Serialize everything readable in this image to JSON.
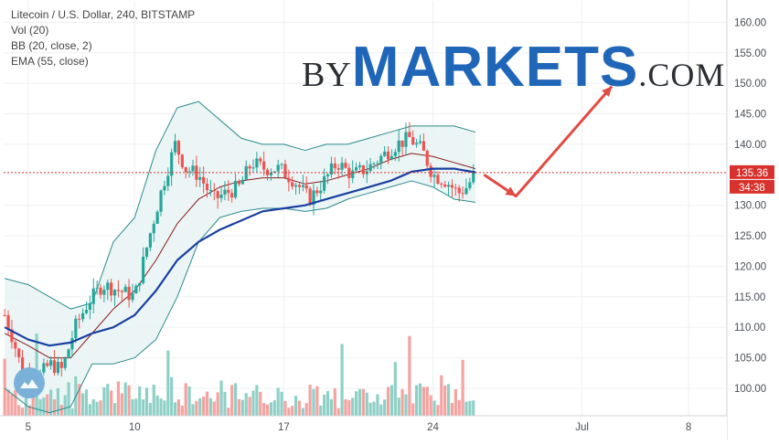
{
  "legend": {
    "line1": "Litecoin / U.S. Dollar, 240, BITSTAMP",
    "line2": "Vol (20)",
    "line3": "BB (20, close, 2)",
    "line4": "EMA (55, close)"
  },
  "watermark": {
    "by": "BY",
    "markets": "MARKETS",
    "com": ".COM"
  },
  "price_label": {
    "value": "135.36",
    "countdown": "34:38"
  },
  "colors": {
    "up": "#26a69a",
    "down": "#ef5350",
    "vol_up": "#8fd0c6",
    "vol_down": "#f4a3a1",
    "bb_band": "#2d8a8a",
    "bb_fill": "#e8f3f5",
    "bb_mid": "#8b1a1a",
    "ema": "#1a3fa0",
    "arrow": "#e04b43",
    "price_line": "#d9322e"
  },
  "icons": {
    "logo": "tradingview-cloud-icon"
  },
  "chart_data": {
    "type": "candlestick",
    "title": "Litecoin / U.S. Dollar, 240, BITSTAMP",
    "ylim": [
      95.5,
      163.5
    ],
    "y_ticks": [
      100,
      105,
      110,
      115,
      120,
      125,
      130,
      135,
      140,
      145,
      150,
      155,
      160
    ],
    "y_tick_labels": [
      "100.00",
      "105.00",
      "110.00",
      "115.00",
      "120.00",
      "125.00",
      "130.00",
      "135.00",
      "140.00",
      "145.00",
      "150.00",
      "155.00",
      "160.00"
    ],
    "x_ticks": [
      {
        "day": 5,
        "label": "5"
      },
      {
        "day": 10,
        "label": "10"
      },
      {
        "day": 17,
        "label": "17"
      },
      {
        "day": 24,
        "label": "24"
      },
      {
        "day": 31,
        "label": "Jul"
      },
      {
        "day": 36,
        "label": "8"
      }
    ],
    "x_range_days": [
      3.85,
      37.8
    ],
    "bars_per_day": 6,
    "indicators": [
      "Vol (20)",
      "BB (20, close, 2)",
      "EMA (55, close)"
    ],
    "last_price": 135.36,
    "anchors": [
      {
        "day": 3.9,
        "close": 112
      },
      {
        "day": 4.3,
        "close": 108
      },
      {
        "day": 4.7,
        "close": 103
      },
      {
        "day": 5.3,
        "close": 101
      },
      {
        "day": 6.0,
        "close": 104
      },
      {
        "day": 6.6,
        "close": 103
      },
      {
        "day": 7.2,
        "close": 110
      },
      {
        "day": 7.8,
        "close": 114
      },
      {
        "day": 8.5,
        "close": 117
      },
      {
        "day": 9.3,
        "close": 116
      },
      {
        "day": 10.0,
        "close": 115
      },
      {
        "day": 10.7,
        "close": 125
      },
      {
        "day": 11.3,
        "close": 133
      },
      {
        "day": 11.9,
        "close": 140
      },
      {
        "day": 12.4,
        "close": 136
      },
      {
        "day": 13.0,
        "close": 135
      },
      {
        "day": 13.7,
        "close": 131
      },
      {
        "day": 14.3,
        "close": 132
      },
      {
        "day": 14.9,
        "close": 133
      },
      {
        "day": 15.5,
        "close": 137
      },
      {
        "day": 16.1,
        "close": 136
      },
      {
        "day": 16.8,
        "close": 136
      },
      {
        "day": 17.5,
        "close": 134
      },
      {
        "day": 18.2,
        "close": 131
      },
      {
        "day": 18.9,
        "close": 134
      },
      {
        "day": 19.5,
        "close": 137
      },
      {
        "day": 20.2,
        "close": 135
      },
      {
        "day": 20.9,
        "close": 136
      },
      {
        "day": 21.6,
        "close": 138
      },
      {
        "day": 22.3,
        "close": 140
      },
      {
        "day": 22.9,
        "close": 141
      },
      {
        "day": 23.5,
        "close": 139
      },
      {
        "day": 24.0,
        "close": 135
      },
      {
        "day": 24.6,
        "close": 134
      },
      {
        "day": 25.2,
        "close": 132
      },
      {
        "day": 25.6,
        "close": 133
      },
      {
        "day": 26.0,
        "close": 135.36
      }
    ],
    "ema_path": [
      {
        "day": 3.9,
        "value": 110
      },
      {
        "day": 5.0,
        "value": 108
      },
      {
        "day": 6.0,
        "value": 107
      },
      {
        "day": 7.0,
        "value": 107.5
      },
      {
        "day": 8.0,
        "value": 109
      },
      {
        "day": 9.0,
        "value": 110
      },
      {
        "day": 10.0,
        "value": 112
      },
      {
        "day": 11.0,
        "value": 116
      },
      {
        "day": 12.0,
        "value": 121
      },
      {
        "day": 13.0,
        "value": 124
      },
      {
        "day": 14.0,
        "value": 126
      },
      {
        "day": 15.0,
        "value": 127.5
      },
      {
        "day": 16.0,
        "value": 129
      },
      {
        "day": 17.0,
        "value": 129.5
      },
      {
        "day": 18.0,
        "value": 130
      },
      {
        "day": 19.0,
        "value": 131
      },
      {
        "day": 20.0,
        "value": 132
      },
      {
        "day": 21.0,
        "value": 133
      },
      {
        "day": 22.0,
        "value": 134
      },
      {
        "day": 23.0,
        "value": 135.5
      },
      {
        "day": 24.0,
        "value": 136
      },
      {
        "day": 25.0,
        "value": 136
      },
      {
        "day": 26.0,
        "value": 135.4
      }
    ],
    "bb_upper": [
      {
        "day": 3.9,
        "value": 118
      },
      {
        "day": 5.0,
        "value": 117
      },
      {
        "day": 6.0,
        "value": 115
      },
      {
        "day": 7.0,
        "value": 113
      },
      {
        "day": 8.0,
        "value": 114
      },
      {
        "day": 9.0,
        "value": 124
      },
      {
        "day": 10.0,
        "value": 128
      },
      {
        "day": 11.0,
        "value": 139
      },
      {
        "day": 12.0,
        "value": 146
      },
      {
        "day": 13.0,
        "value": 147
      },
      {
        "day": 14.0,
        "value": 144
      },
      {
        "day": 15.0,
        "value": 141
      },
      {
        "day": 16.0,
        "value": 140
      },
      {
        "day": 17.0,
        "value": 140
      },
      {
        "day": 18.0,
        "value": 139
      },
      {
        "day": 19.0,
        "value": 140
      },
      {
        "day": 20.0,
        "value": 140
      },
      {
        "day": 21.0,
        "value": 141
      },
      {
        "day": 22.0,
        "value": 142
      },
      {
        "day": 23.0,
        "value": 143
      },
      {
        "day": 24.0,
        "value": 143
      },
      {
        "day": 25.0,
        "value": 143
      },
      {
        "day": 26.0,
        "value": 142
      }
    ],
    "bb_mid": [
      {
        "day": 3.9,
        "value": 109
      },
      {
        "day": 5.0,
        "value": 107
      },
      {
        "day": 6.0,
        "value": 105
      },
      {
        "day": 7.0,
        "value": 105
      },
      {
        "day": 8.0,
        "value": 109
      },
      {
        "day": 9.0,
        "value": 113
      },
      {
        "day": 10.0,
        "value": 116
      },
      {
        "day": 11.0,
        "value": 121
      },
      {
        "day": 12.0,
        "value": 127
      },
      {
        "day": 13.0,
        "value": 131
      },
      {
        "day": 14.0,
        "value": 133
      },
      {
        "day": 15.0,
        "value": 134
      },
      {
        "day": 16.0,
        "value": 134.5
      },
      {
        "day": 17.0,
        "value": 134.5
      },
      {
        "day": 18.0,
        "value": 133.5
      },
      {
        "day": 19.0,
        "value": 134
      },
      {
        "day": 20.0,
        "value": 135
      },
      {
        "day": 21.0,
        "value": 136
      },
      {
        "day": 22.0,
        "value": 137.5
      },
      {
        "day": 23.0,
        "value": 138.5
      },
      {
        "day": 24.0,
        "value": 138
      },
      {
        "day": 25.0,
        "value": 137
      },
      {
        "day": 26.0,
        "value": 136
      }
    ],
    "bb_lower": [
      {
        "day": 3.9,
        "value": 100
      },
      {
        "day": 5.0,
        "value": 97
      },
      {
        "day": 6.0,
        "value": 96
      },
      {
        "day": 7.0,
        "value": 97
      },
      {
        "day": 8.0,
        "value": 104
      },
      {
        "day": 9.0,
        "value": 104
      },
      {
        "day": 10.0,
        "value": 105
      },
      {
        "day": 11.0,
        "value": 108
      },
      {
        "day": 12.0,
        "value": 115
      },
      {
        "day": 13.0,
        "value": 124
      },
      {
        "day": 14.0,
        "value": 128
      },
      {
        "day": 15.0,
        "value": 129
      },
      {
        "day": 16.0,
        "value": 129.5
      },
      {
        "day": 17.0,
        "value": 129.5
      },
      {
        "day": 18.0,
        "value": 129
      },
      {
        "day": 19.0,
        "value": 129.5
      },
      {
        "day": 20.0,
        "value": 131
      },
      {
        "day": 21.0,
        "value": 132
      },
      {
        "day": 22.0,
        "value": 133
      },
      {
        "day": 23.0,
        "value": 134
      },
      {
        "day": 24.0,
        "value": 133
      },
      {
        "day": 25.0,
        "value": 131
      },
      {
        "day": 26.0,
        "value": 130.5
      }
    ],
    "forecast_arrow": [
      {
        "day": 26.4,
        "value": 135
      },
      {
        "day": 27.9,
        "value": 131.5
      },
      {
        "day": 32.4,
        "value": 149.5
      }
    ]
  }
}
